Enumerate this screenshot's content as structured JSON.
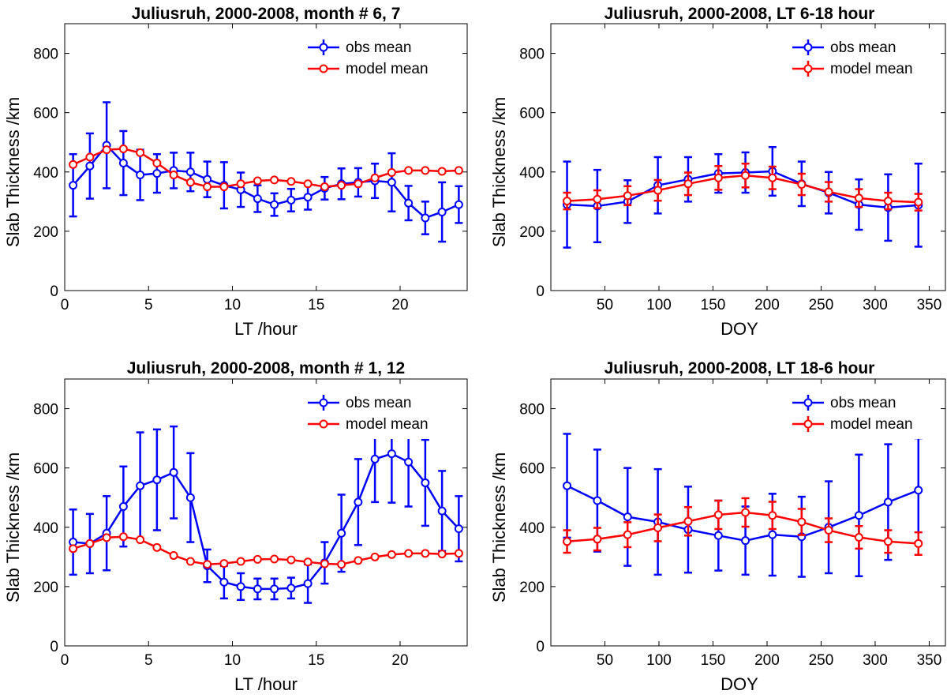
{
  "chart_data": [
    {
      "type": "line",
      "title": "Juliusruh, 2000-2008, month # 6, 7",
      "xlabel": "LT /hour",
      "ylabel": "Slab Thickness /km",
      "xlim": [
        0,
        24
      ],
      "ylim": [
        0,
        900
      ],
      "xticks": [
        0,
        5,
        10,
        15,
        20
      ],
      "yticks": [
        0,
        200,
        400,
        600,
        800
      ],
      "legend_position": "top-right",
      "series": [
        {
          "name": "obs mean",
          "color": "#0000ff",
          "x": [
            0.5,
            1.5,
            2.5,
            3.5,
            4.5,
            5.5,
            6.5,
            7.5,
            8.5,
            9.5,
            10.5,
            11.5,
            12.5,
            13.5,
            14.5,
            15.5,
            16.5,
            17.5,
            18.5,
            19.5,
            20.5,
            21.5,
            22.5,
            23.5
          ],
          "values": [
            355,
            420,
            490,
            430,
            390,
            395,
            405,
            400,
            375,
            355,
            340,
            310,
            290,
            305,
            315,
            345,
            360,
            365,
            370,
            365,
            295,
            245,
            265,
            290
          ],
          "err": [
            105,
            110,
            145,
            108,
            85,
            65,
            60,
            65,
            60,
            78,
            58,
            45,
            38,
            38,
            42,
            38,
            52,
            48,
            58,
            98,
            58,
            55,
            100,
            62
          ]
        },
        {
          "name": "model mean",
          "color": "#ff0000",
          "x": [
            0.5,
            1.5,
            2.5,
            3.5,
            4.5,
            5.5,
            6.5,
            7.5,
            8.5,
            9.5,
            10.5,
            11.5,
            12.5,
            13.5,
            14.5,
            15.5,
            16.5,
            17.5,
            18.5,
            19.5,
            20.5,
            21.5,
            22.5,
            23.5
          ],
          "values": [
            425,
            450,
            475,
            478,
            465,
            430,
            390,
            365,
            350,
            350,
            360,
            370,
            373,
            368,
            360,
            350,
            355,
            360,
            380,
            398,
            405,
            405,
            402,
            405
          ]
        }
      ]
    },
    {
      "type": "line",
      "title": "Juliusruh, 2000-2008, LT 6-18 hour",
      "xlabel": "DOY",
      "ylabel": "Slab Thickness /km",
      "xlim": [
        0,
        365
      ],
      "ylim": [
        0,
        900
      ],
      "xticks": [
        50,
        100,
        150,
        200,
        250,
        300,
        350
      ],
      "yticks": [
        0,
        200,
        400,
        600,
        800
      ],
      "legend_position": "top-right",
      "series": [
        {
          "name": "obs mean",
          "color": "#0000ff",
          "x": [
            15,
            43,
            71,
            99,
            127,
            155,
            180,
            205,
            232,
            257,
            285,
            312,
            340
          ],
          "values": [
            290,
            285,
            300,
            355,
            375,
            395,
            398,
            402,
            360,
            330,
            290,
            280,
            288
          ],
          "err": [
            145,
            122,
            72,
            95,
            75,
            65,
            68,
            82,
            75,
            70,
            85,
            112,
            140
          ]
        },
        {
          "name": "model mean",
          "color": "#ff0000",
          "x": [
            15,
            43,
            71,
            99,
            127,
            155,
            180,
            205,
            232,
            257,
            285,
            312,
            340
          ],
          "values": [
            302,
            308,
            320,
            338,
            360,
            380,
            388,
            380,
            358,
            333,
            312,
            302,
            298
          ],
          "err": [
            28,
            30,
            32,
            35,
            38,
            40,
            40,
            38,
            36,
            33,
            30,
            28,
            28
          ]
        }
      ]
    },
    {
      "type": "line",
      "title": "Juliusruh, 2000-2008, month # 1, 12",
      "xlabel": "LT /hour",
      "ylabel": "Slab Thickness /km",
      "xlim": [
        0,
        24
      ],
      "ylim": [
        0,
        900
      ],
      "xticks": [
        0,
        5,
        10,
        15,
        20
      ],
      "yticks": [
        0,
        200,
        400,
        600,
        800
      ],
      "legend_position": "top-right",
      "series": [
        {
          "name": "obs mean",
          "color": "#0000ff",
          "x": [
            0.5,
            1.5,
            2.5,
            3.5,
            4.5,
            5.5,
            6.5,
            7.5,
            8.5,
            9.5,
            10.5,
            11.5,
            12.5,
            13.5,
            14.5,
            15.5,
            16.5,
            17.5,
            18.5,
            19.5,
            20.5,
            21.5,
            22.5,
            23.5
          ],
          "values": [
            350,
            345,
            380,
            470,
            540,
            560,
            585,
            500,
            270,
            215,
            200,
            192,
            192,
            195,
            210,
            280,
            380,
            485,
            630,
            648,
            620,
            550,
            455,
            395
          ],
          "err": [
            110,
            100,
            125,
            135,
            180,
            170,
            155,
            150,
            55,
            55,
            45,
            35,
            35,
            35,
            65,
            70,
            130,
            145,
            145,
            165,
            150,
            145,
            135,
            110
          ]
        },
        {
          "name": "model mean",
          "color": "#ff0000",
          "x": [
            0.5,
            1.5,
            2.5,
            3.5,
            4.5,
            5.5,
            6.5,
            7.5,
            8.5,
            9.5,
            10.5,
            11.5,
            12.5,
            13.5,
            14.5,
            15.5,
            16.5,
            17.5,
            18.5,
            19.5,
            20.5,
            21.5,
            22.5,
            23.5
          ],
          "values": [
            328,
            345,
            365,
            368,
            358,
            332,
            305,
            285,
            275,
            278,
            285,
            292,
            293,
            290,
            283,
            277,
            275,
            288,
            300,
            308,
            312,
            312,
            310,
            312
          ]
        }
      ]
    },
    {
      "type": "line",
      "title": "Juliusruh, 2000-2008, LT 18-6 hour",
      "xlabel": "DOY",
      "ylabel": "Slab Thickness /km",
      "xlim": [
        0,
        365
      ],
      "ylim": [
        0,
        900
      ],
      "xticks": [
        50,
        100,
        150,
        200,
        250,
        300,
        350
      ],
      "yticks": [
        0,
        200,
        400,
        600,
        800
      ],
      "legend_position": "top-right",
      "series": [
        {
          "name": "obs mean",
          "color": "#0000ff",
          "x": [
            15,
            43,
            71,
            99,
            127,
            155,
            180,
            205,
            232,
            257,
            285,
            312,
            340
          ],
          "values": [
            540,
            490,
            435,
            418,
            392,
            372,
            355,
            375,
            368,
            400,
            440,
            485,
            525
          ],
          "err": [
            175,
            172,
            165,
            178,
            145,
            118,
            115,
            138,
            135,
            155,
            205,
            195,
            175
          ]
        },
        {
          "name": "model mean",
          "color": "#ff0000",
          "x": [
            15,
            43,
            71,
            99,
            127,
            155,
            180,
            205,
            232,
            257,
            285,
            312,
            340
          ],
          "values": [
            352,
            360,
            375,
            398,
            420,
            442,
            450,
            440,
            418,
            390,
            366,
            352,
            345
          ],
          "err": [
            38,
            38,
            42,
            45,
            48,
            48,
            48,
            46,
            44,
            40,
            38,
            38,
            38
          ]
        }
      ]
    }
  ]
}
